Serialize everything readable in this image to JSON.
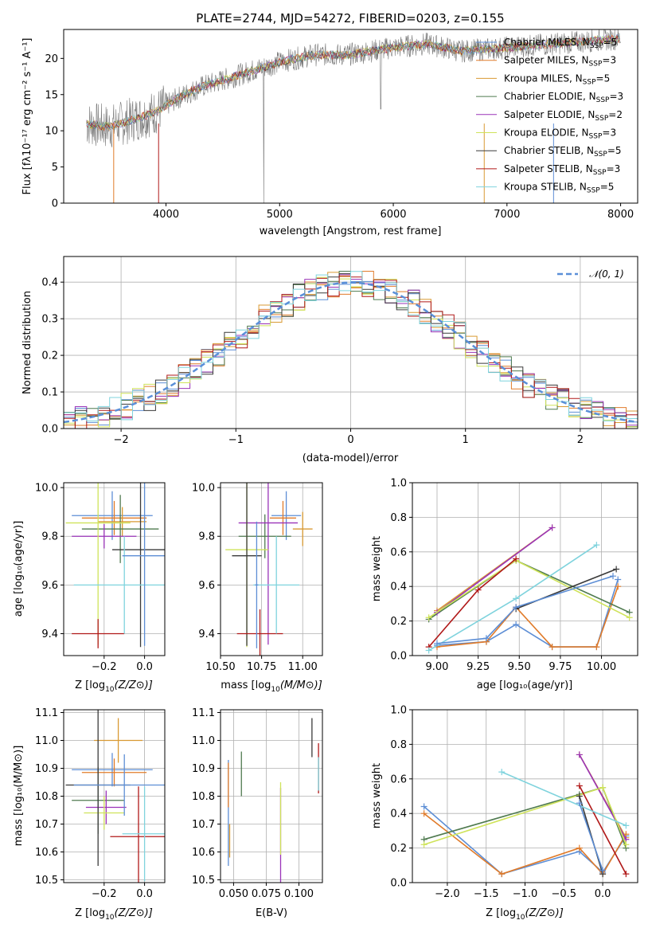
{
  "figure": {
    "title": "PLATE=2744, MJD=54272, FIBERID=0203, z=0.155"
  },
  "colors": {
    "models": [
      "#5d8ed5",
      "#e07b2a",
      "#d99a33",
      "#4f7a4f",
      "#9a33b8",
      "#cfe35a",
      "#3a3a3a",
      "#b01818",
      "#7fd3dd"
    ],
    "spectrum": "#7a7a7a",
    "normal": "#5a8fd8",
    "grid": "#b0b0b0"
  },
  "chart_data": [
    {
      "id": "spectrum",
      "type": "line",
      "xlabel": "wavelength [Angstrom, rest frame]",
      "ylabel": "Flux [fλ10⁻¹⁷ erg cm⁻² s⁻¹ A⁻¹]",
      "xlim": [
        3100,
        8150
      ],
      "ylim": [
        0,
        24
      ],
      "xticks": [
        4000,
        5000,
        6000,
        7000,
        8000
      ],
      "yticks": [
        0,
        5,
        10,
        15,
        20
      ],
      "grid": false,
      "legend_position": "upper right",
      "continuum": {
        "x": [
          3300,
          3500,
          3700,
          3900,
          4100,
          4300,
          4500,
          4700,
          5000,
          5300,
          5600,
          6000,
          6300,
          6600,
          7000,
          7400,
          7800,
          8000
        ],
        "y": [
          11,
          10.5,
          11.5,
          12.5,
          14.5,
          16,
          17,
          18,
          19.5,
          20.5,
          20.5,
          21.5,
          22,
          21,
          21.5,
          22,
          22.5,
          22.8
        ]
      },
      "series": [
        {
          "name": "Chabrier MILES, N_SSP=5",
          "label_main": "Chabrier MILES, N",
          "label_sub": "SSP",
          "label_tail": "=5"
        },
        {
          "name": "Salpeter MILES, N_SSP=3",
          "label_main": "Salpeter MILES, N",
          "label_sub": "SSP",
          "label_tail": "=3"
        },
        {
          "name": "Kroupa MILES, N_SSP=5",
          "label_main": "Kroupa MILES, N",
          "label_sub": "SSP",
          "label_tail": "=5"
        },
        {
          "name": "Chabrier ELODIE, N_SSP=3",
          "label_main": "Chabrier ELODIE, N",
          "label_sub": "SSP",
          "label_tail": "=3"
        },
        {
          "name": "Salpeter ELODIE, N_SSP=2",
          "label_main": "Salpeter ELODIE, N",
          "label_sub": "SSP",
          "label_tail": "=2"
        },
        {
          "name": "Kroupa ELODIE, N_SSP=3",
          "label_main": "Kroupa ELODIE, N",
          "label_sub": "SSP",
          "label_tail": "=3"
        },
        {
          "name": "Chabrier STELIB, N_SSP=5",
          "label_main": "Chabrier STELIB, N",
          "label_sub": "SSP",
          "label_tail": "=5"
        },
        {
          "name": "Salpeter STELIB, N_SSP=3",
          "label_main": "Salpeter STELIB, N",
          "label_sub": "SSP",
          "label_tail": "=3"
        },
        {
          "name": "Kroupa STELIB, N_SSP=5",
          "label_main": "Kroupa STELIB, N",
          "label_sub": "SSP",
          "label_tail": "=5"
        }
      ]
    },
    {
      "id": "histogram",
      "type": "line",
      "xlabel": "(data-model)/error",
      "ylabel": "Normed distribution",
      "xlim": [
        -2.5,
        2.5
      ],
      "ylim": [
        0,
        0.47
      ],
      "xticks": [
        -2,
        -1,
        0,
        1,
        2
      ],
      "xtick_labels": [
        "−2",
        "−1",
        "0",
        "1",
        "2"
      ],
      "yticks": [
        0,
        0.1,
        0.2,
        0.3,
        0.4
      ],
      "ytick_labels": [
        "0.0",
        "0.1",
        "0.2",
        "0.3",
        "0.4"
      ],
      "grid": true,
      "bin_edges": [
        -2.5,
        -2.4,
        -2.3,
        -2.2,
        -2.1,
        -2.0,
        -1.9,
        -1.8,
        -1.7,
        -1.6,
        -1.5,
        -1.4,
        -1.3,
        -1.2,
        -1.1,
        -1.0,
        -0.9,
        -0.8,
        -0.7,
        -0.6,
        -0.5,
        -0.4,
        -0.3,
        -0.2,
        -0.1,
        0.0,
        0.1,
        0.2,
        0.3,
        0.4,
        0.5,
        0.6,
        0.7,
        0.8,
        0.9,
        1.0,
        1.1,
        1.2,
        1.3,
        1.4,
        1.5,
        1.6,
        1.7,
        1.8,
        1.9,
        2.0,
        2.1,
        2.2,
        2.3,
        2.4,
        2.5
      ],
      "reference": {
        "name": "N(0,1)",
        "legend_label": "𝒩(0, 1)",
        "mean": 0,
        "sigma": 1
      }
    },
    {
      "id": "age-vs-Z",
      "type": "scatter",
      "xlabel_main": "Z [log",
      "xlabel_sub": "10",
      "xlabel_tail": "(Z/Z⊙)]",
      "ylabel": "age  [log₁₀(age/yr)]",
      "xlim": [
        -0.4,
        0.1
      ],
      "ylim": [
        9.31,
        10.02
      ],
      "xticks": [
        -0.2,
        0.0
      ],
      "xtick_labels": [
        "−0.2",
        "0.0"
      ],
      "yticks": [
        9.4,
        9.6,
        9.8,
        10.0
      ],
      "ytick_labels": [
        "9.4",
        "9.6",
        "9.8",
        "10.0"
      ],
      "grid": true,
      "points": [
        {
          "x": -0.16,
          "y": 9.885,
          "xerr": 0.2,
          "yerr": 0.1
        },
        {
          "x": -0.15,
          "y": 9.875,
          "xerr": 0.16,
          "yerr": 0.07
        },
        {
          "x": -0.11,
          "y": 9.86,
          "xerr": 0.12,
          "yerr": 0.06
        },
        {
          "x": -0.12,
          "y": 9.83,
          "xerr": 0.19,
          "yerr": 0.14
        },
        {
          "x": -0.2,
          "y": 9.8,
          "xerr": 0.16,
          "yerr": 0.05
        },
        {
          "x": -0.23,
          "y": 9.855,
          "xerr": 0.16,
          "yerr": 0.5
        },
        {
          "x": -0.02,
          "y": 9.745,
          "xerr": 0.14,
          "yerr": 0.4
        },
        {
          "x": -0.23,
          "y": 9.4,
          "xerr": 0.13,
          "yerr": 0.06
        },
        {
          "x": -0.1,
          "y": 9.6,
          "xerr": 0.25,
          "yerr": 0.2
        },
        {
          "x": 0.0,
          "y": 9.72,
          "xerr": 0.11,
          "yerr": 0.37
        }
      ]
    },
    {
      "id": "age-vs-mass",
      "type": "scatter",
      "xlabel_main": "mass [log",
      "xlabel_sub": "10",
      "xlabel_tail": "(M/M⊙)]",
      "xlim": [
        10.5,
        11.12
      ],
      "ylim": [
        9.31,
        10.02
      ],
      "xticks": [
        10.5,
        10.75,
        11.0
      ],
      "xtick_labels": [
        "10.50",
        "10.75",
        "11.00"
      ],
      "yticks": [
        9.4,
        9.6,
        9.8,
        10.0
      ],
      "ytick_labels": [
        "9.4",
        "9.6",
        "9.8",
        "10.0"
      ],
      "grid": true,
      "points": [
        {
          "x": 10.9,
          "y": 9.885,
          "xerr": 0.09,
          "yerr": 0.1
        },
        {
          "x": 10.88,
          "y": 9.875,
          "xerr": 0.08,
          "yerr": 0.07
        },
        {
          "x": 11.0,
          "y": 9.83,
          "xerr": 0.06,
          "yerr": 0.07
        },
        {
          "x": 10.77,
          "y": 9.8,
          "xerr": 0.16,
          "yerr": 0.09
        },
        {
          "x": 10.79,
          "y": 9.855,
          "xerr": 0.18,
          "yerr": 0.5
        },
        {
          "x": 10.66,
          "y": 9.745,
          "xerr": 0.13,
          "yerr": 0.4
        },
        {
          "x": 10.66,
          "y": 9.72,
          "xerr": 0.09,
          "yerr": 0.37
        },
        {
          "x": 10.74,
          "y": 9.4,
          "xerr": 0.14,
          "yerr": 0.1
        },
        {
          "x": 10.84,
          "y": 9.6,
          "xerr": 0.14,
          "yerr": 0.2
        },
        {
          "x": 10.72,
          "y": 9.6,
          "xerr": 0.01,
          "yerr": 0.26
        }
      ]
    },
    {
      "id": "massweight-vs-age",
      "type": "line",
      "xlabel": "age  [log₁₀(age/yr)]",
      "ylabel": "mass weight",
      "xlim": [
        8.85,
        10.22
      ],
      "ylim": [
        0,
        1
      ],
      "xticks": [
        9.0,
        9.25,
        9.5,
        9.75,
        10.0
      ],
      "xtick_labels": [
        "9.00",
        "9.25",
        "9.50",
        "9.75",
        "10.00"
      ],
      "yticks": [
        0,
        0.2,
        0.4,
        0.6,
        0.8,
        1.0
      ],
      "ytick_labels": [
        "0.0",
        "0.2",
        "0.4",
        "0.6",
        "0.8",
        "1.0"
      ],
      "grid": true,
      "series": [
        {
          "x": [
            9.0,
            9.3,
            9.48,
            9.7,
            9.97,
            10.1
          ],
          "y": [
            0.06,
            0.08,
            0.18,
            0.05,
            0.05,
            0.44
          ]
        },
        {
          "x": [
            9.0,
            9.3,
            9.48,
            9.7,
            9.97,
            10.1
          ],
          "y": [
            0.05,
            0.08,
            0.28,
            0.05,
            0.05,
            0.4
          ]
        },
        {
          "x": [
            9.0,
            9.7
          ],
          "y": [
            0.26,
            0.74
          ]
        },
        {
          "x": [
            8.95,
            9.48,
            10.17
          ],
          "y": [
            0.21,
            0.55,
            0.25
          ]
        },
        {
          "x": [
            9.0,
            9.7
          ],
          "y": [
            0.25,
            0.74
          ]
        },
        {
          "x": [
            8.95,
            9.48,
            10.17
          ],
          "y": [
            0.22,
            0.55,
            0.22
          ]
        },
        {
          "x": [
            9.48,
            10.09
          ],
          "y": [
            0.27,
            0.5
          ]
        },
        {
          "x": [
            8.95,
            9.25,
            9.48
          ],
          "y": [
            0.05,
            0.38,
            0.56
          ]
        },
        {
          "x": [
            8.95,
            9.48,
            9.97
          ],
          "y": [
            0.03,
            0.33,
            0.64
          ]
        },
        {
          "x": [
            9.0,
            9.3,
            9.48,
            10.07
          ],
          "y": [
            0.07,
            0.1,
            0.28,
            0.46
          ]
        }
      ]
    },
    {
      "id": "mass-vs-Z",
      "type": "scatter",
      "xlabel_main": "Z [log",
      "xlabel_sub": "10",
      "xlabel_tail": "(Z/Z⊙)]",
      "ylabel": "mass [log₁₀(M/M⊙)]",
      "xlim": [
        -0.4,
        0.1
      ],
      "ylim": [
        10.49,
        11.11
      ],
      "xticks": [
        -0.2,
        0.0
      ],
      "xtick_labels": [
        "−0.2",
        "0.0"
      ],
      "yticks": [
        10.5,
        10.6,
        10.7,
        10.8,
        10.9,
        11.0,
        11.1
      ],
      "ytick_labels": [
        "10.5",
        "10.6",
        "10.7",
        "10.8",
        "10.9",
        "11.0",
        "11.1"
      ],
      "grid": true,
      "points": [
        {
          "x": -0.16,
          "y": 10.895,
          "xerr": 0.2,
          "yerr": 0.06
        },
        {
          "x": -0.15,
          "y": 10.885,
          "xerr": 0.16,
          "yerr": 0.05
        },
        {
          "x": -0.13,
          "y": 11.0,
          "xerr": 0.12,
          "yerr": 0.08
        },
        {
          "x": -0.23,
          "y": 10.785,
          "xerr": 0.13,
          "yerr": 0.12
        },
        {
          "x": -0.19,
          "y": 10.76,
          "xerr": 0.1,
          "yerr": 0.06
        },
        {
          "x": -0.2,
          "y": 10.74,
          "xerr": 0.1,
          "yerr": 0.06
        },
        {
          "x": -0.23,
          "y": 10.84,
          "xerr": 0.16,
          "yerr": 0.29
        },
        {
          "x": -0.03,
          "y": 10.655,
          "xerr": 0.14,
          "yerr": 0.18
        },
        {
          "x": 0.0,
          "y": 10.665,
          "xerr": 0.11,
          "yerr": 0.17
        },
        {
          "x": -0.1,
          "y": 10.84,
          "xerr": 0.25,
          "yerr": 0.11
        }
      ]
    },
    {
      "id": "mass-vs-ebv",
      "type": "scatter",
      "xlabel": "E(B-V)",
      "xlim": [
        0.04,
        0.118
      ],
      "ylim": [
        10.49,
        11.11
      ],
      "xticks": [
        0.05,
        0.075,
        0.1
      ],
      "xtick_labels": [
        "0.050",
        "0.075",
        "0.100"
      ],
      "yticks": [
        10.5,
        10.6,
        10.7,
        10.8,
        10.9,
        11.0,
        11.1
      ],
      "ytick_labels": [
        "10.5",
        "10.6",
        "10.7",
        "10.8",
        "10.9",
        "11.0",
        "11.1"
      ],
      "grid": true,
      "points": [
        {
          "x": 0.046,
          "y": 10.74,
          "xerr": 0.0,
          "yerr": 0.19
        },
        {
          "x": 0.046,
          "y": 10.84,
          "xerr": 0.0,
          "yerr": 0.08
        },
        {
          "x": 0.047,
          "y": 10.64,
          "xerr": 0.0,
          "yerr": 0.06
        },
        {
          "x": 0.056,
          "y": 10.88,
          "xerr": 0.0,
          "yerr": 0.08
        },
        {
          "x": 0.086,
          "y": 10.66,
          "xerr": 0.0,
          "yerr": 0.17
        },
        {
          "x": 0.086,
          "y": 10.72,
          "xerr": 0.0,
          "yerr": 0.13
        },
        {
          "x": 0.11,
          "y": 11.01,
          "xerr": 0.0,
          "yerr": 0.07
        },
        {
          "x": 0.115,
          "y": 10.9,
          "xerr": 0.0,
          "yerr": 0.09
        },
        {
          "x": 0.115,
          "y": 10.88,
          "xerr": 0.0,
          "yerr": 0.06
        }
      ]
    },
    {
      "id": "massweight-vs-Z",
      "type": "line",
      "xlabel_main": "Z [log",
      "xlabel_sub": "10",
      "xlabel_tail": "(Z/Z⊙)]",
      "ylabel": "mass weight",
      "xlim": [
        -2.45,
        0.45
      ],
      "ylim": [
        0,
        1
      ],
      "xticks": [
        -2.0,
        -1.5,
        -1.0,
        -0.5,
        0.0
      ],
      "xtick_labels": [
        "−2.0",
        "−1.5",
        "−1.0",
        "−0.5",
        "0.0"
      ],
      "yticks": [
        0,
        0.2,
        0.4,
        0.6,
        0.8,
        1.0
      ],
      "ytick_labels": [
        "0.0",
        "0.2",
        "0.4",
        "0.6",
        "0.8",
        "1.0"
      ],
      "grid": true,
      "series": [
        {
          "x": [
            -2.3,
            -1.3,
            -0.3,
            0.0,
            0.3
          ],
          "y": [
            0.44,
            0.05,
            0.18,
            0.06,
            0.27
          ]
        },
        {
          "x": [
            -2.3,
            -1.3,
            -0.3,
            0.0,
            0.3
          ],
          "y": [
            0.4,
            0.05,
            0.2,
            0.05,
            0.28
          ]
        },
        {
          "x": [
            -0.3,
            0.3
          ],
          "y": [
            0.74,
            0.26
          ]
        },
        {
          "x": [
            -2.3,
            -0.3,
            0.0,
            0.3
          ],
          "y": [
            0.25,
            0.51,
            0.55,
            0.2
          ]
        },
        {
          "x": [
            -0.3,
            0.3
          ],
          "y": [
            0.74,
            0.25
          ]
        },
        {
          "x": [
            -2.3,
            0.0,
            0.3
          ],
          "y": [
            0.22,
            0.55,
            0.22
          ]
        },
        {
          "x": [
            -0.3,
            0.0
          ],
          "y": [
            0.5,
            0.05
          ]
        },
        {
          "x": [
            -0.3,
            0.3
          ],
          "y": [
            0.56,
            0.05
          ]
        },
        {
          "x": [
            -1.3,
            0.3
          ],
          "y": [
            0.64,
            0.33
          ]
        },
        {
          "x": [
            -0.3,
            0.0
          ],
          "y": [
            0.46,
            0.07
          ]
        }
      ]
    }
  ]
}
